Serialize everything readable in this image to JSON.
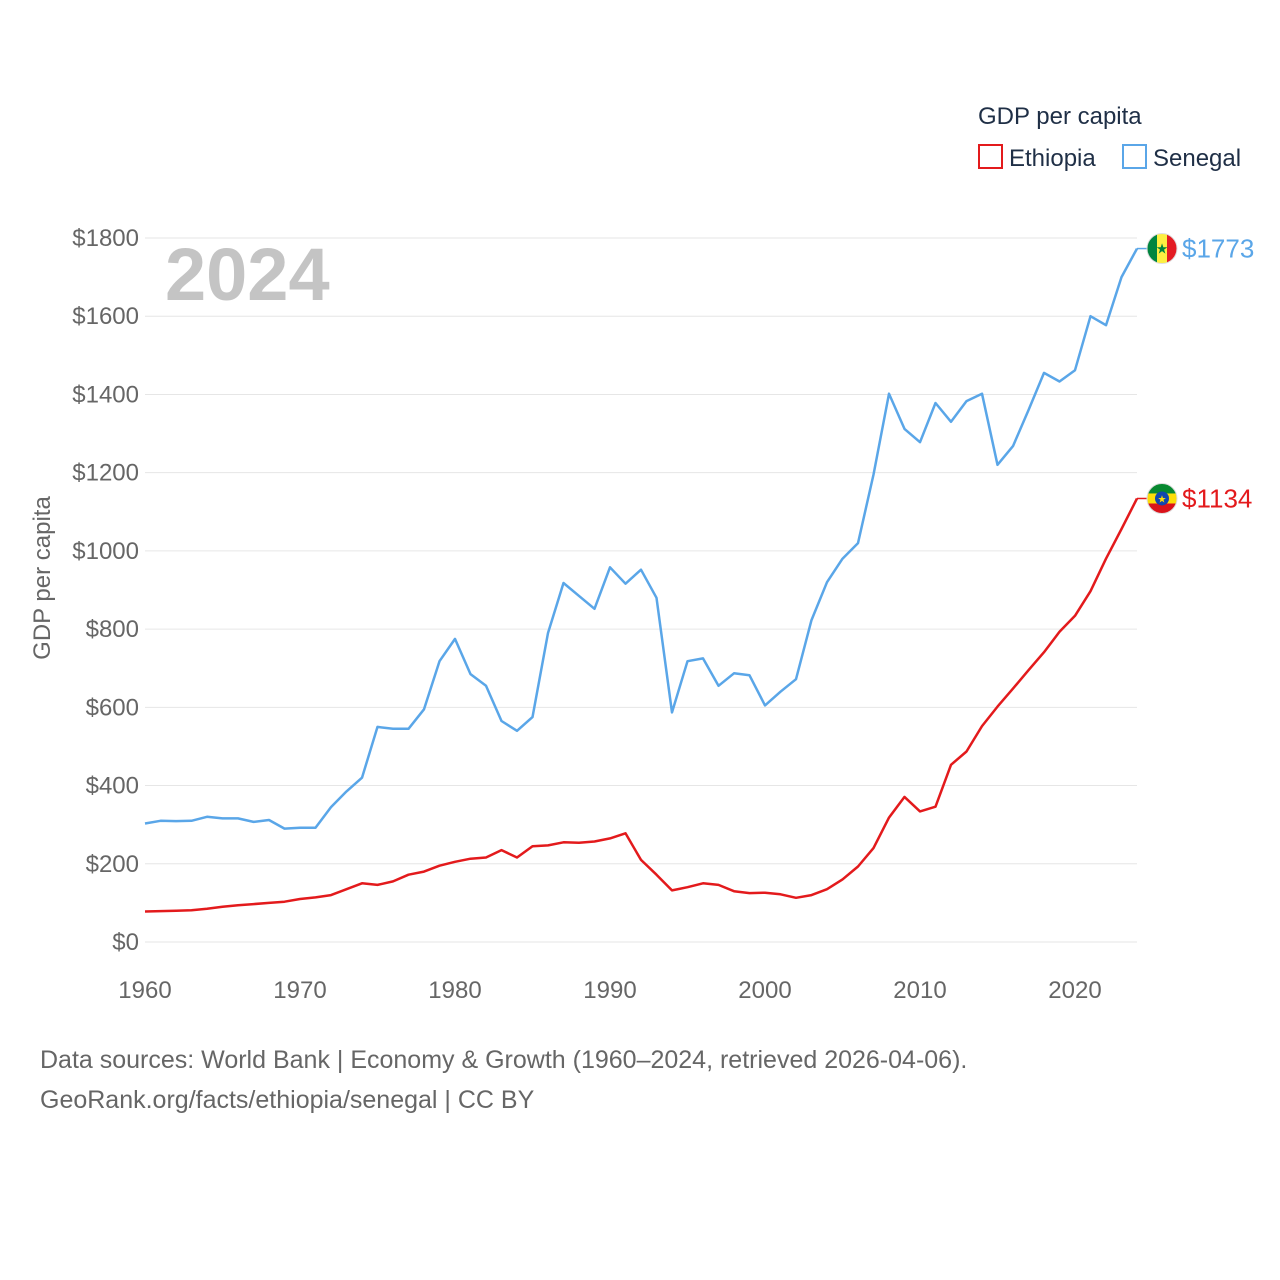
{
  "chart_data": {
    "type": "line",
    "year_label": "2024",
    "legend": {
      "title": "GDP per capita"
    },
    "ylabel": "GDP per capita",
    "ylim": [
      0,
      1800
    ],
    "y_ticks": [
      0,
      200,
      400,
      600,
      800,
      1000,
      1200,
      1400,
      1600,
      1800
    ],
    "y_tick_labels": [
      "$0",
      "$200",
      "$400",
      "$600",
      "$800",
      "$1000",
      "$1200",
      "$1400",
      "$1600",
      "$1800"
    ],
    "xlim": [
      1960,
      2024
    ],
    "x_ticks": [
      1960,
      1970,
      1980,
      1990,
      2000,
      2010,
      2020
    ],
    "x_tick_labels": [
      "1960",
      "1970",
      "1980",
      "1990",
      "2000",
      "2010",
      "2020"
    ],
    "grid": true,
    "x_start": 1960,
    "series": [
      {
        "name": "Ethiopia",
        "color": "#e31a1c",
        "end_label": "$1134",
        "flag": "ethiopia-flag-icon",
        "values": [
          78,
          79,
          80,
          81,
          85,
          90,
          94,
          97,
          100,
          103,
          110,
          114,
          120,
          135,
          150,
          146,
          155,
          172,
          180,
          195,
          205,
          213,
          216,
          235,
          216,
          245,
          247,
          255,
          254,
          257,
          265,
          278,
          210,
          172,
          132,
          140,
          150,
          146,
          130,
          125,
          126,
          122,
          113,
          120,
          135,
          160,
          193,
          240,
          318,
          371,
          334,
          346,
          453,
          487,
          552,
          602,
          648,
          695,
          741,
          793,
          834,
          897,
          980,
          1056,
          1134
        ]
      },
      {
        "name": "Senegal",
        "color": "#5aa6e8",
        "end_label": "$1773",
        "flag": "senegal-flag-icon",
        "values": [
          303,
          310,
          309,
          310,
          320,
          316,
          316,
          307,
          312,
          290,
          292,
          292,
          345,
          385,
          420,
          550,
          545,
          545,
          595,
          718,
          775,
          685,
          655,
          565,
          540,
          575,
          790,
          918,
          885,
          852,
          958,
          916,
          952,
          880,
          587,
          718,
          725,
          655,
          687,
          682,
          605,
          640,
          672,
          823,
          920,
          980,
          1020,
          1195,
          1402,
          1312,
          1278,
          1378,
          1330,
          1383,
          1402,
          1220,
          1268,
          1360,
          1455,
          1433,
          1462,
          1600,
          1577,
          1700,
          1773
        ]
      }
    ]
  },
  "footer": {
    "line1": "Data sources: World Bank | Economy & Growth (1960–2024, retrieved 2026-04-06).",
    "line2": "GeoRank.org/facts/ethiopia/senegal | CC BY"
  }
}
